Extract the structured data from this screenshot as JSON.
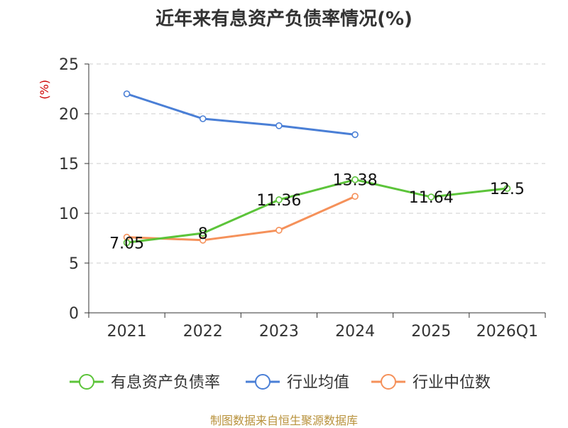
{
  "chart_data": {
    "type": "line",
    "title": "近年来有息资产负债率情况(%)",
    "ylabel": "(%)",
    "xlabel": "",
    "categories": [
      "2021",
      "2022",
      "2023",
      "2024",
      "2025",
      "2026Q1"
    ],
    "ylim": [
      0,
      25
    ],
    "yticks": [
      0,
      5,
      10,
      15,
      20,
      25
    ],
    "grid": true,
    "legend_position": "bottom",
    "series": [
      {
        "name": "有息资产负债率",
        "color": "#5cc43a",
        "values": [
          7.05,
          8,
          11.36,
          13.38,
          11.64,
          12.5
        ],
        "labels": [
          "7.05",
          "8",
          "11.36",
          "13.38",
          "11.64",
          "12.5"
        ]
      },
      {
        "name": "行业均值",
        "color": "#4a7fd6",
        "values": [
          22,
          19.5,
          18.8,
          17.9,
          null,
          null
        ]
      },
      {
        "name": "行业中位数",
        "color": "#f5915a",
        "values": [
          7.6,
          7.3,
          8.3,
          11.7,
          null,
          null
        ]
      }
    ]
  },
  "source": "制图数据来自恒生聚源数据库"
}
